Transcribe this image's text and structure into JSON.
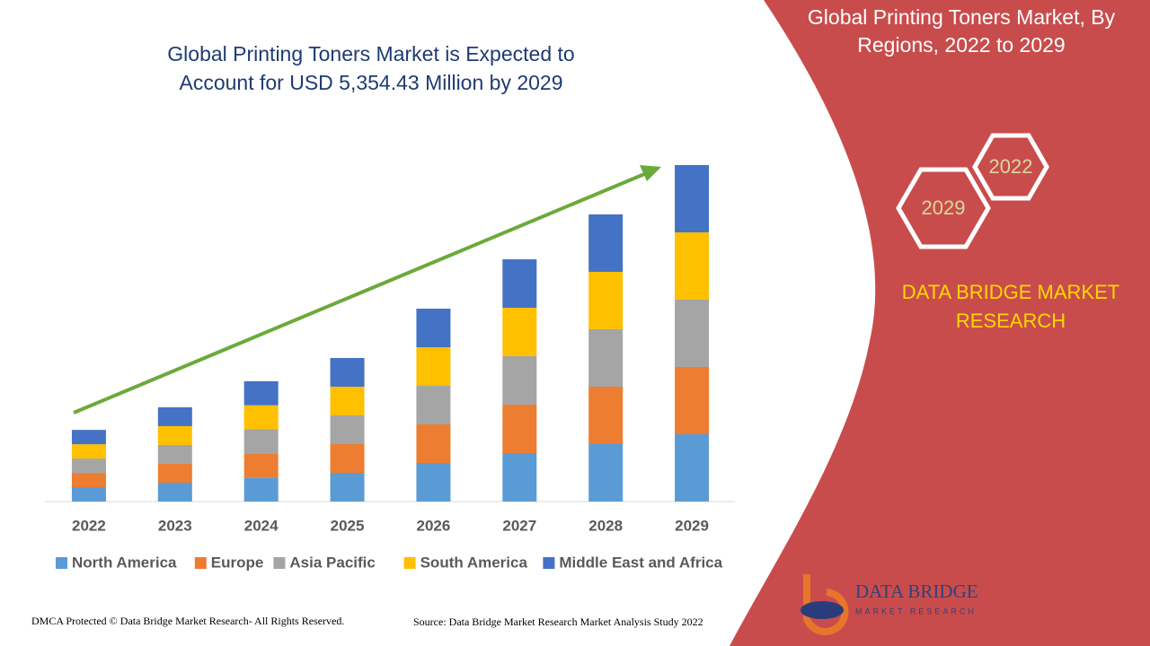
{
  "chart_data": {
    "type": "stacked_bar",
    "title": "Global Printing Toners Market is Expected to Account for USD 5,354.43 Million by 2029",
    "categories": [
      "2022",
      "2023",
      "2024",
      "2025",
      "2026",
      "2027",
      "2028",
      "2029"
    ],
    "series": [
      {
        "name": "North America",
        "color": "#5b9bd5",
        "values": [
          228,
          300,
          383,
          457,
          614,
          771,
          914,
          1071
        ]
      },
      {
        "name": "Europe",
        "color": "#ed7d31",
        "values": [
          228,
          300,
          383,
          457,
          614,
          771,
          914,
          1071
        ]
      },
      {
        "name": "Asia Pacific",
        "color": "#a5a5a5",
        "values": [
          228,
          300,
          383,
          457,
          614,
          771,
          914,
          1071
        ]
      },
      {
        "name": "South America",
        "color": "#ffc000",
        "values": [
          228,
          300,
          383,
          457,
          614,
          771,
          914,
          1071
        ]
      },
      {
        "name": "Middle East and Africa",
        "color": "#4472c4",
        "values": [
          228,
          300,
          383,
          457,
          614,
          771,
          914,
          1071
        ]
      }
    ],
    "legend": "bottom"
  },
  "side_panel": {
    "title": "Global Printing Toners Market, By Regions, 2022 to 2029",
    "hexagons": [
      "2022",
      "2029"
    ],
    "brand": "DATA BRIDGE MARKET RESEARCH",
    "logo": {
      "name": "DATA BRIDGE",
      "tagline": "MARKET RESEARCH"
    }
  },
  "footer": {
    "copyright": "DMCA Protected © Data Bridge Market Research- All Rights Reserved.",
    "source": "Source: Data Bridge Market Research Market Analysis Study 2022"
  }
}
